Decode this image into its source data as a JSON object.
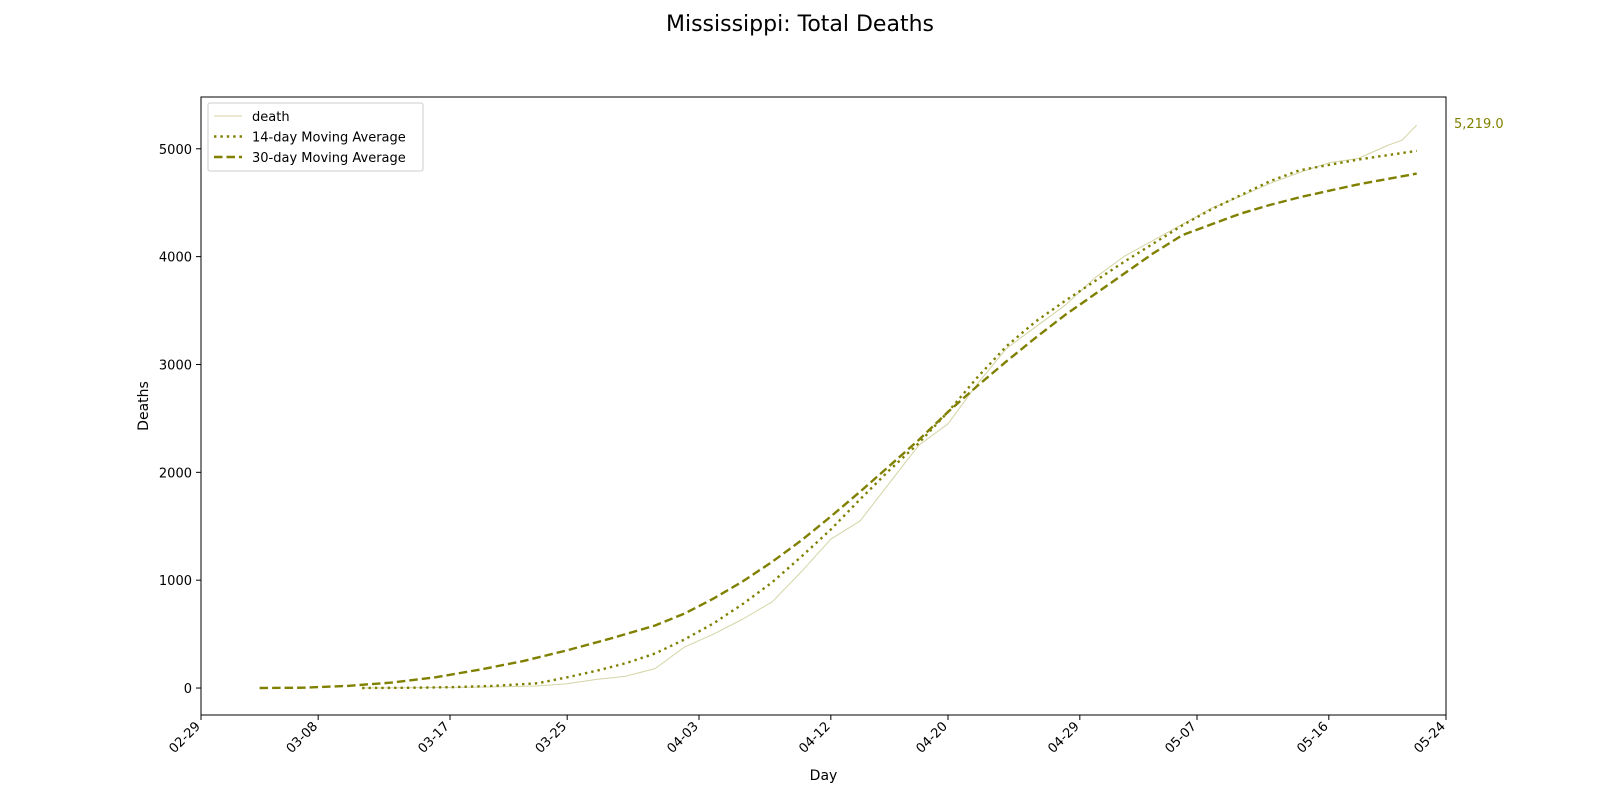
{
  "chart_data": {
    "type": "line",
    "title": "Mississippi: Total Deaths",
    "xlabel": "Day",
    "ylabel": "Deaths",
    "x_start": "2020-02-29",
    "x_end": "2020-05-24",
    "x_tick_labels": [
      "02-29",
      "03-08",
      "03-17",
      "03-25",
      "04-03",
      "04-12",
      "04-20",
      "04-29",
      "05-07",
      "05-16",
      "05-24"
    ],
    "x_tick_dates": [
      "2020-02-29",
      "2020-03-08",
      "2020-03-17",
      "2020-03-25",
      "2020-04-03",
      "2020-04-12",
      "2020-04-20",
      "2020-04-29",
      "2020-05-07",
      "2020-05-16",
      "2020-05-24"
    ],
    "ylim": [
      -250,
      5480
    ],
    "y_ticks": [
      0,
      1000,
      2000,
      3000,
      4000,
      5000
    ],
    "y_tick_labels": [
      "0",
      "1000",
      "2000",
      "3000",
      "4000",
      "5000"
    ],
    "grid": false,
    "legend_position": "top-left",
    "annotation": {
      "text": "5,219.0",
      "color": "#808000"
    },
    "series": [
      {
        "name": "death",
        "style": "solid-thin",
        "color": "#d4d4a6",
        "points": [
          [
            "2020-03-11",
            0
          ],
          [
            "2020-03-14",
            2
          ],
          [
            "2020-03-17",
            6
          ],
          [
            "2020-03-19",
            9
          ],
          [
            "2020-03-21",
            13
          ],
          [
            "2020-03-23",
            20
          ],
          [
            "2020-03-25",
            40
          ],
          [
            "2020-03-27",
            80
          ],
          [
            "2020-03-29",
            110
          ],
          [
            "2020-03-31",
            180
          ],
          [
            "2020-04-02",
            380
          ],
          [
            "2020-04-04",
            500
          ],
          [
            "2020-04-06",
            640
          ],
          [
            "2020-04-08",
            800
          ],
          [
            "2020-04-10",
            1080
          ],
          [
            "2020-04-12",
            1380
          ],
          [
            "2020-04-14",
            1550
          ],
          [
            "2020-04-16",
            1900
          ],
          [
            "2020-04-18",
            2250
          ],
          [
            "2020-04-20",
            2450
          ],
          [
            "2020-04-22",
            2820
          ],
          [
            "2020-04-24",
            3150
          ],
          [
            "2020-04-26",
            3350
          ],
          [
            "2020-04-28",
            3550
          ],
          [
            "2020-04-30",
            3800
          ],
          [
            "2020-05-02",
            4000
          ],
          [
            "2020-05-04",
            4150
          ],
          [
            "2020-05-06",
            4300
          ],
          [
            "2020-05-08",
            4450
          ],
          [
            "2020-05-10",
            4560
          ],
          [
            "2020-05-12",
            4680
          ],
          [
            "2020-05-14",
            4780
          ],
          [
            "2020-05-16",
            4870
          ],
          [
            "2020-05-18",
            4910
          ],
          [
            "2020-05-20",
            5030
          ],
          [
            "2020-05-21",
            5080
          ],
          [
            "2020-05-22",
            5219
          ]
        ]
      },
      {
        "name": "14-day Moving Average",
        "style": "dotted",
        "color": "#808000",
        "points": [
          [
            "2020-03-11",
            0
          ],
          [
            "2020-03-14",
            2
          ],
          [
            "2020-03-17",
            8
          ],
          [
            "2020-03-20",
            20
          ],
          [
            "2020-03-23",
            45
          ],
          [
            "2020-03-25",
            100
          ],
          [
            "2020-03-27",
            160
          ],
          [
            "2020-03-29",
            230
          ],
          [
            "2020-03-31",
            320
          ],
          [
            "2020-04-02",
            450
          ],
          [
            "2020-04-04",
            600
          ],
          [
            "2020-04-06",
            780
          ],
          [
            "2020-04-08",
            980
          ],
          [
            "2020-04-10",
            1220
          ],
          [
            "2020-04-12",
            1470
          ],
          [
            "2020-04-14",
            1750
          ],
          [
            "2020-04-16",
            2020
          ],
          [
            "2020-04-18",
            2270
          ],
          [
            "2020-04-20",
            2560
          ],
          [
            "2020-04-22",
            2880
          ],
          [
            "2020-04-24",
            3170
          ],
          [
            "2020-04-26",
            3400
          ],
          [
            "2020-04-28",
            3590
          ],
          [
            "2020-04-30",
            3770
          ],
          [
            "2020-05-02",
            3950
          ],
          [
            "2020-05-04",
            4120
          ],
          [
            "2020-05-06",
            4290
          ],
          [
            "2020-05-08",
            4440
          ],
          [
            "2020-05-10",
            4570
          ],
          [
            "2020-05-12",
            4700
          ],
          [
            "2020-05-14",
            4800
          ],
          [
            "2020-05-16",
            4850
          ],
          [
            "2020-05-18",
            4900
          ],
          [
            "2020-05-20",
            4940
          ],
          [
            "2020-05-22",
            4980
          ]
        ]
      },
      {
        "name": "30-day Moving Average",
        "style": "dashed",
        "color": "#808000",
        "points": [
          [
            "2020-03-04",
            0
          ],
          [
            "2020-03-07",
            3
          ],
          [
            "2020-03-10",
            20
          ],
          [
            "2020-03-13",
            50
          ],
          [
            "2020-03-16",
            100
          ],
          [
            "2020-03-19",
            170
          ],
          [
            "2020-03-22",
            250
          ],
          [
            "2020-03-25",
            350
          ],
          [
            "2020-03-28",
            460
          ],
          [
            "2020-03-31",
            580
          ],
          [
            "2020-04-02",
            690
          ],
          [
            "2020-04-04",
            830
          ],
          [
            "2020-04-06",
            990
          ],
          [
            "2020-04-08",
            1170
          ],
          [
            "2020-04-10",
            1370
          ],
          [
            "2020-04-12",
            1590
          ],
          [
            "2020-04-14",
            1820
          ],
          [
            "2020-04-16",
            2060
          ],
          [
            "2020-04-18",
            2300
          ],
          [
            "2020-04-20",
            2560
          ],
          [
            "2020-04-22",
            2800
          ],
          [
            "2020-04-24",
            3030
          ],
          [
            "2020-04-26",
            3250
          ],
          [
            "2020-04-28",
            3460
          ],
          [
            "2020-04-30",
            3650
          ],
          [
            "2020-05-02",
            3840
          ],
          [
            "2020-05-04",
            4030
          ],
          [
            "2020-05-06",
            4200
          ],
          [
            "2020-05-08",
            4300
          ],
          [
            "2020-05-10",
            4400
          ],
          [
            "2020-05-12",
            4480
          ],
          [
            "2020-05-14",
            4550
          ],
          [
            "2020-05-16",
            4610
          ],
          [
            "2020-05-18",
            4670
          ],
          [
            "2020-05-20",
            4720
          ],
          [
            "2020-05-22",
            4770
          ]
        ]
      }
    ]
  }
}
